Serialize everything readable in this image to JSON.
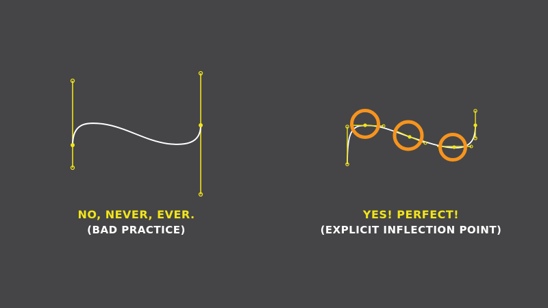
{
  "left_example": {
    "title": "NO, NEVER, EVER.",
    "subtitle": "(BAD PRACTICE)"
  },
  "right_example": {
    "title": "YES! PERFECT!",
    "subtitle": "(EXPLICIT INFLECTION POINT)"
  },
  "colors": {
    "background": "#454547",
    "handle": "#f2e51a",
    "curve": "#ffffff",
    "highlight": "#f7941d"
  }
}
